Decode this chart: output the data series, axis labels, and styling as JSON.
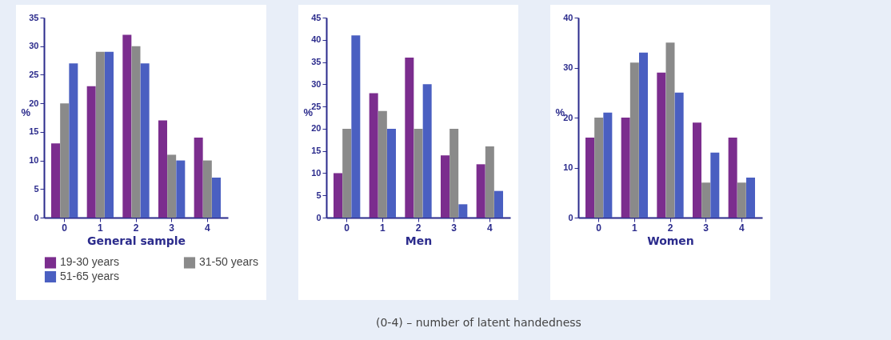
{
  "chart_data": [
    {
      "type": "bar",
      "xlabel": "General sample",
      "ylabel": "%",
      "categories": [
        "0",
        "1",
        "2",
        "3",
        "4"
      ],
      "ylim": [
        0,
        35
      ],
      "yticks": [
        0,
        5,
        10,
        15,
        20,
        25,
        30,
        35
      ],
      "grid": false,
      "legend": "bottom",
      "annotations": [
        "(0-4) – number of latent handedness"
      ],
      "series": [
        {
          "name": "19-30 years",
          "color": "#7b2d8e",
          "values": [
            13,
            23,
            32,
            17,
            14
          ]
        },
        {
          "name": "31-50 years",
          "color": "#8a8a8a",
          "values": [
            20,
            29,
            30,
            11,
            10
          ]
        },
        {
          "name": "51-65 years",
          "color": "#4a5fc1",
          "values": [
            27,
            29,
            27,
            10,
            7
          ]
        }
      ]
    },
    {
      "type": "bar",
      "xlabel": "Men",
      "ylabel": "%",
      "categories": [
        "0",
        "1",
        "2",
        "3",
        "4"
      ],
      "ylim": [
        0,
        45
      ],
      "yticks": [
        0,
        5,
        10,
        15,
        20,
        25,
        30,
        35,
        40,
        45
      ],
      "grid": false,
      "series": [
        {
          "color": "#7b2d8e",
          "values": [
            10,
            28,
            36,
            14,
            12
          ]
        },
        {
          "color": "#8a8a8a",
          "values": [
            20,
            24,
            20,
            20,
            16
          ]
        },
        {
          "color": "#4a5fc1",
          "values": [
            41,
            20,
            30,
            3,
            6
          ]
        }
      ]
    },
    {
      "type": "bar",
      "xlabel": "Women",
      "ylabel": "%",
      "categories": [
        "0",
        "1",
        "2",
        "3",
        "4"
      ],
      "ylim": [
        0,
        40
      ],
      "yticks": [
        0,
        10,
        20,
        30,
        40
      ],
      "grid": false,
      "series": [
        {
          "color": "#7b2d8e",
          "values": [
            16,
            20,
            29,
            19,
            16
          ]
        },
        {
          "color": "#8a8a8a",
          "values": [
            20,
            31,
            35,
            7,
            7
          ]
        },
        {
          "color": "#4a5fc1",
          "values": [
            21,
            33,
            25,
            13,
            8
          ]
        }
      ]
    }
  ]
}
